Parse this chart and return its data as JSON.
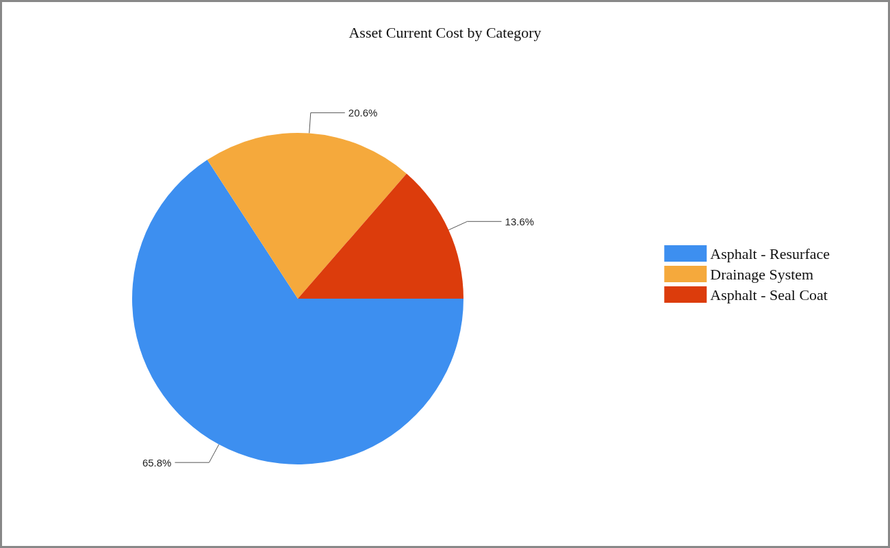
{
  "chart_data": {
    "type": "pie",
    "title": "Asset Current Cost by Category",
    "categories": [
      "Asphalt - Resurface",
      "Drainage System",
      "Asphalt - Seal Coat"
    ],
    "values": [
      65.8,
      20.6,
      13.6
    ],
    "colors": [
      "#3d8ff0",
      "#f5a93c",
      "#dc3c0c"
    ],
    "value_labels": [
      "65.8%",
      "20.6%",
      "13.6%"
    ],
    "legend": "right"
  }
}
